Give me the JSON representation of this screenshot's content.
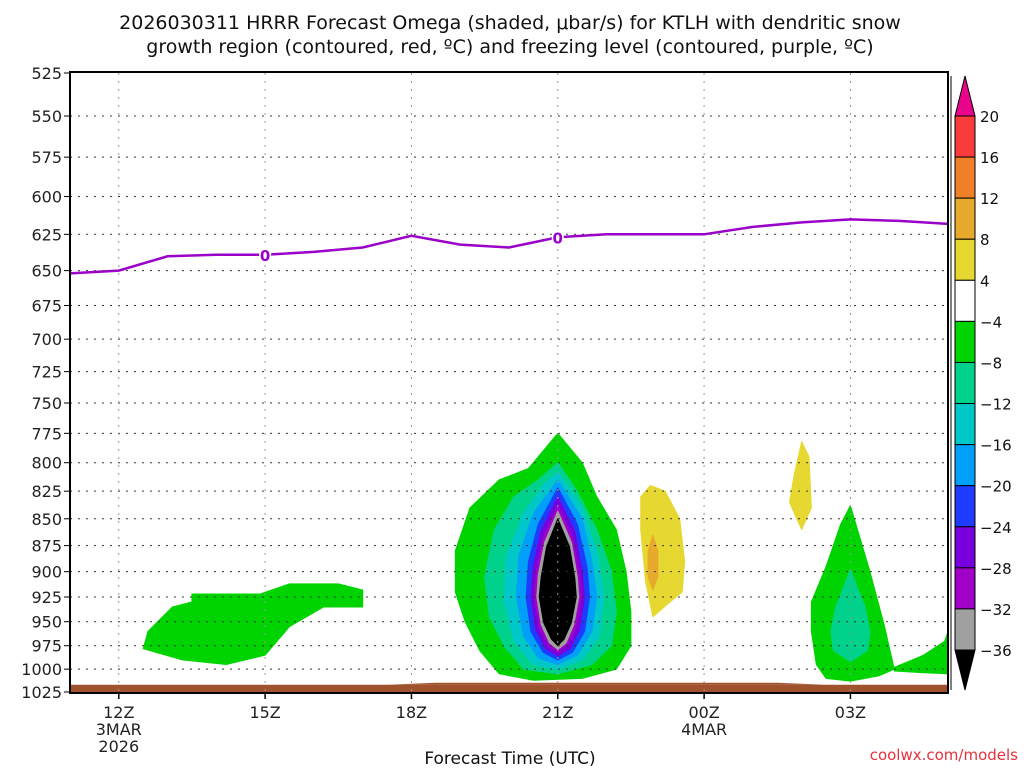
{
  "chart_data": {
    "type": "heatmap",
    "title_lines": [
      "2026030311 HRRR Forecast Omega (shaded, μbar/s) for KTLH with dendritic snow",
      "growth region (contoured, red, ºC) and freezing level (contoured, purple, ºC)"
    ],
    "xlabel": "Forecast Time (UTC)",
    "ylabel": "",
    "credit": "coolwx.com/models",
    "y_axis": {
      "unit": "hPa",
      "ticks": [
        525,
        550,
        575,
        600,
        625,
        650,
        675,
        700,
        725,
        750,
        775,
        800,
        825,
        850,
        875,
        900,
        925,
        950,
        975,
        1000,
        1025
      ],
      "range": [
        525,
        1025
      ],
      "inverted": true
    },
    "x_axis": {
      "unit": "hours since 2026-03-03 12Z",
      "range": [
        -1,
        17
      ],
      "ticks": [
        {
          "hour": 0,
          "lines": [
            "12Z",
            "3MAR",
            "2026"
          ]
        },
        {
          "hour": 3,
          "lines": [
            "15Z"
          ]
        },
        {
          "hour": 6,
          "lines": [
            "18Z"
          ]
        },
        {
          "hour": 9,
          "lines": [
            "21Z"
          ]
        },
        {
          "hour": 12,
          "lines": [
            "00Z",
            "4MAR"
          ]
        },
        {
          "hour": 15,
          "lines": [
            "03Z"
          ]
        }
      ]
    },
    "grid": true,
    "colorbar": {
      "placement": "right",
      "levels": [
        20,
        16,
        12,
        8,
        4,
        -4,
        -8,
        -12,
        -16,
        -20,
        -24,
        -28,
        -32,
        -36
      ],
      "bins": [
        {
          "label": ">20",
          "color": "#e8058c"
        },
        {
          "label": "16-20",
          "color": "#f83c3c"
        },
        {
          "label": "12-16",
          "color": "#f08028"
        },
        {
          "label": "8-12",
          "color": "#e8aa2c"
        },
        {
          "label": "4-8",
          "color": "#e6d830"
        },
        {
          "label": "-4-4",
          "color": "#ffffff"
        },
        {
          "label": "-8--4",
          "color": "#00d400"
        },
        {
          "label": "-12--8",
          "color": "#00d28c"
        },
        {
          "label": "-16--12",
          "color": "#00c8c8"
        },
        {
          "label": "-20--16",
          "color": "#00a0f8"
        },
        {
          "label": "-24--20",
          "color": "#1e3cff"
        },
        {
          "label": "-28--24",
          "color": "#7800dc"
        },
        {
          "label": "-32--28",
          "color": "#a000c8"
        },
        {
          "label": "-36--32",
          "color": "#a0a0a0"
        },
        {
          "label": "<-36",
          "color": "#000000"
        }
      ]
    },
    "freezing_level": {
      "color": "#9a00c8",
      "label": "0",
      "label_hours": [
        3,
        9
      ],
      "points": [
        {
          "hour": -1,
          "p": 652
        },
        {
          "hour": 0,
          "p": 650
        },
        {
          "hour": 1,
          "p": 640
        },
        {
          "hour": 2,
          "p": 639
        },
        {
          "hour": 3,
          "p": 639
        },
        {
          "hour": 4,
          "p": 637
        },
        {
          "hour": 5,
          "p": 634
        },
        {
          "hour": 6,
          "p": 626
        },
        {
          "hour": 7,
          "p": 632
        },
        {
          "hour": 8,
          "p": 634
        },
        {
          "hour": 9,
          "p": 627
        },
        {
          "hour": 10,
          "p": 625
        },
        {
          "hour": 11,
          "p": 625
        },
        {
          "hour": 12,
          "p": 625
        },
        {
          "hour": 13,
          "p": 620
        },
        {
          "hour": 14,
          "p": 617
        },
        {
          "hour": 15,
          "p": 615
        },
        {
          "hour": 16,
          "p": 616
        },
        {
          "hour": 17,
          "p": 618
        }
      ]
    },
    "ground": {
      "color": "#a0522d",
      "top_p": 1017
    },
    "omega_regions": [
      {
        "name": "left-weak-ascent",
        "bin": "-8--4",
        "polygon": [
          [
            1.5,
            922
          ],
          [
            2.9,
            922
          ],
          [
            3.5,
            912
          ],
          [
            4.5,
            912
          ],
          [
            5.0,
            918
          ],
          [
            5.0,
            935
          ],
          [
            4.2,
            935
          ],
          [
            3.5,
            955
          ],
          [
            3.0,
            985
          ],
          [
            2.2,
            995
          ],
          [
            1.3,
            990
          ],
          [
            0.5,
            978
          ],
          [
            0.6,
            960
          ],
          [
            1.1,
            935
          ],
          [
            1.5,
            930
          ]
        ]
      },
      {
        "name": "main-ascent-8",
        "bin": "-8--4",
        "polygon": [
          [
            9.0,
            775
          ],
          [
            9.5,
            800
          ],
          [
            9.8,
            830
          ],
          [
            10.2,
            860
          ],
          [
            10.4,
            900
          ],
          [
            10.5,
            940
          ],
          [
            10.5,
            975
          ],
          [
            10.2,
            1000
          ],
          [
            9.5,
            1010
          ],
          [
            8.5,
            1012
          ],
          [
            7.8,
            1005
          ],
          [
            7.4,
            980
          ],
          [
            7.1,
            950
          ],
          [
            6.9,
            920
          ],
          [
            6.9,
            880
          ],
          [
            7.2,
            840
          ],
          [
            7.8,
            815
          ],
          [
            8.4,
            805
          ]
        ]
      },
      {
        "name": "main-ascent-12",
        "bin": "-12--8",
        "polygon": [
          [
            9.0,
            800
          ],
          [
            9.4,
            825
          ],
          [
            9.8,
            860
          ],
          [
            10.1,
            900
          ],
          [
            10.2,
            940
          ],
          [
            10.1,
            975
          ],
          [
            9.7,
            995
          ],
          [
            9.0,
            1005
          ],
          [
            8.3,
            1000
          ],
          [
            7.9,
            975
          ],
          [
            7.6,
            945
          ],
          [
            7.5,
            905
          ],
          [
            7.7,
            860
          ],
          [
            8.1,
            830
          ],
          [
            8.6,
            815
          ]
        ]
      },
      {
        "name": "main-ascent-16",
        "bin": "-16--12",
        "polygon": [
          [
            9.0,
            808
          ],
          [
            9.5,
            840
          ],
          [
            9.8,
            880
          ],
          [
            9.95,
            925
          ],
          [
            9.85,
            965
          ],
          [
            9.5,
            990
          ],
          [
            9.0,
            1000
          ],
          [
            8.5,
            995
          ],
          [
            8.1,
            970
          ],
          [
            7.9,
            930
          ],
          [
            7.95,
            885
          ],
          [
            8.3,
            845
          ],
          [
            8.7,
            820
          ]
        ]
      },
      {
        "name": "main-ascent-20",
        "bin": "-20--16",
        "polygon": [
          [
            9.0,
            815
          ],
          [
            9.5,
            850
          ],
          [
            9.7,
            890
          ],
          [
            9.8,
            925
          ],
          [
            9.7,
            960
          ],
          [
            9.4,
            985
          ],
          [
            9.0,
            995
          ],
          [
            8.6,
            988
          ],
          [
            8.3,
            965
          ],
          [
            8.15,
            925
          ],
          [
            8.2,
            885
          ],
          [
            8.5,
            845
          ]
        ]
      },
      {
        "name": "main-ascent-24",
        "bin": "-24--20",
        "polygon": [
          [
            9.0,
            822
          ],
          [
            9.4,
            855
          ],
          [
            9.6,
            895
          ],
          [
            9.65,
            925
          ],
          [
            9.55,
            960
          ],
          [
            9.3,
            982
          ],
          [
            9.0,
            990
          ],
          [
            8.7,
            982
          ],
          [
            8.45,
            960
          ],
          [
            8.35,
            925
          ],
          [
            8.4,
            890
          ],
          [
            8.6,
            855
          ]
        ]
      },
      {
        "name": "main-ascent-28",
        "bin": "-28--24",
        "polygon": [
          [
            9.0,
            830
          ],
          [
            9.35,
            862
          ],
          [
            9.5,
            900
          ],
          [
            9.55,
            925
          ],
          [
            9.45,
            958
          ],
          [
            9.25,
            978
          ],
          [
            9.0,
            986
          ],
          [
            8.75,
            978
          ],
          [
            8.55,
            958
          ],
          [
            8.45,
            925
          ],
          [
            8.5,
            895
          ],
          [
            8.65,
            862
          ]
        ]
      },
      {
        "name": "main-ascent-32",
        "bin": "-32--28",
        "polygon": [
          [
            9.0,
            838
          ],
          [
            9.3,
            868
          ],
          [
            9.45,
            903
          ],
          [
            9.48,
            925
          ],
          [
            9.38,
            955
          ],
          [
            9.2,
            974
          ],
          [
            9.0,
            982
          ],
          [
            8.8,
            974
          ],
          [
            8.62,
            955
          ],
          [
            8.52,
            925
          ],
          [
            8.56,
            900
          ],
          [
            8.7,
            868
          ]
        ]
      },
      {
        "name": "main-ascent-36",
        "bin": "-36--32",
        "polygon": [
          [
            9.0,
            843
          ],
          [
            9.28,
            872
          ],
          [
            9.4,
            905
          ],
          [
            9.43,
            925
          ],
          [
            9.33,
            953
          ],
          [
            9.17,
            972
          ],
          [
            9.0,
            979
          ],
          [
            8.83,
            972
          ],
          [
            8.66,
            953
          ],
          [
            8.57,
            925
          ],
          [
            8.6,
            903
          ],
          [
            8.73,
            872
          ]
        ]
      },
      {
        "name": "main-ascent-core",
        "bin": "<-36",
        "polygon": [
          [
            9.0,
            850
          ],
          [
            9.24,
            876
          ],
          [
            9.35,
            906
          ],
          [
            9.38,
            925
          ],
          [
            9.28,
            951
          ],
          [
            9.13,
            968
          ],
          [
            9.0,
            975
          ],
          [
            8.87,
            968
          ],
          [
            8.71,
            951
          ],
          [
            8.62,
            925
          ],
          [
            8.66,
            905
          ],
          [
            8.77,
            876
          ]
        ]
      },
      {
        "name": "descent-yellow-1",
        "bin": "4-8",
        "polygon": [
          [
            10.9,
            820
          ],
          [
            11.2,
            825
          ],
          [
            11.5,
            850
          ],
          [
            11.6,
            890
          ],
          [
            11.55,
            920
          ],
          [
            11.3,
            930
          ],
          [
            10.95,
            945
          ],
          [
            10.8,
            910
          ],
          [
            10.7,
            860
          ],
          [
            10.7,
            830
          ]
        ]
      },
      {
        "name": "descent-orange-1",
        "bin": "8-12",
        "polygon": [
          [
            10.95,
            865
          ],
          [
            11.05,
            880
          ],
          [
            11.05,
            905
          ],
          [
            10.95,
            918
          ],
          [
            10.85,
            905
          ],
          [
            10.85,
            880
          ]
        ]
      },
      {
        "name": "descent-yellow-2",
        "bin": "4-8",
        "polygon": [
          [
            14.0,
            782
          ],
          [
            14.15,
            795
          ],
          [
            14.2,
            840
          ],
          [
            14.0,
            860
          ],
          [
            13.85,
            845
          ],
          [
            13.75,
            835
          ],
          [
            13.85,
            810
          ]
        ]
      },
      {
        "name": "right-ascent-8",
        "bin": "-8--4",
        "polygon": [
          [
            15.0,
            838
          ],
          [
            15.4,
            900
          ],
          [
            15.7,
            955
          ],
          [
            15.9,
            1000
          ],
          [
            16.9,
            975
          ],
          [
            17.0,
            960
          ],
          [
            17.0,
            1005
          ],
          [
            16.5,
            1003
          ],
          [
            15.9,
            1000
          ],
          [
            15.6,
            1007
          ],
          [
            15.0,
            1013
          ],
          [
            14.5,
            1010
          ],
          [
            14.3,
            995
          ],
          [
            14.2,
            960
          ],
          [
            14.2,
            930
          ],
          [
            14.5,
            895
          ],
          [
            14.8,
            855
          ]
        ]
      },
      {
        "name": "right-ascent-12",
        "bin": "-12--8",
        "polygon": [
          [
            15.0,
            898
          ],
          [
            15.3,
            935
          ],
          [
            15.4,
            962
          ],
          [
            15.35,
            980
          ],
          [
            15.0,
            992
          ],
          [
            14.65,
            980
          ],
          [
            14.6,
            960
          ],
          [
            14.7,
            935
          ]
        ]
      },
      {
        "name": "ground-band-ascent",
        "bin": "-8--4",
        "polygon": [
          [
            15.9,
            998
          ],
          [
            16.5,
            985
          ],
          [
            17.0,
            968
          ],
          [
            17.0,
            1005
          ],
          [
            16.5,
            1004
          ],
          [
            15.9,
            1002
          ]
        ]
      }
    ]
  }
}
